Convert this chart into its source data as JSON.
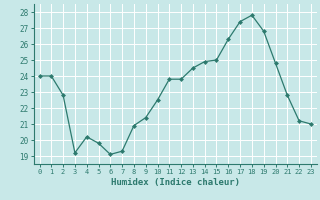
{
  "x": [
    0,
    1,
    2,
    3,
    4,
    5,
    6,
    7,
    8,
    9,
    10,
    11,
    12,
    13,
    14,
    15,
    16,
    17,
    18,
    19,
    20,
    21,
    22,
    23
  ],
  "y": [
    24.0,
    24.0,
    22.8,
    19.2,
    20.2,
    19.8,
    19.1,
    19.3,
    20.9,
    21.4,
    22.5,
    23.8,
    23.8,
    24.5,
    24.9,
    25.0,
    26.3,
    27.4,
    27.8,
    26.8,
    24.8,
    22.8,
    21.2,
    21.0
  ],
  "xlabel": "Humidex (Indice chaleur)",
  "xlim": [
    -0.5,
    23.5
  ],
  "ylim": [
    18.5,
    28.5
  ],
  "yticks": [
    19,
    20,
    21,
    22,
    23,
    24,
    25,
    26,
    27,
    28
  ],
  "xticks": [
    0,
    1,
    2,
    3,
    4,
    5,
    6,
    7,
    8,
    9,
    10,
    11,
    12,
    13,
    14,
    15,
    16,
    17,
    18,
    19,
    20,
    21,
    22,
    23
  ],
  "line_color": "#2d7a6e",
  "marker_color": "#2d7a6e",
  "bg_color": "#c8e8e8",
  "grid_color": "#ffffff",
  "tick_color": "#2d7a6e",
  "xlabel_color": "#2d7a6e",
  "spine_color": "#2d7a6e"
}
